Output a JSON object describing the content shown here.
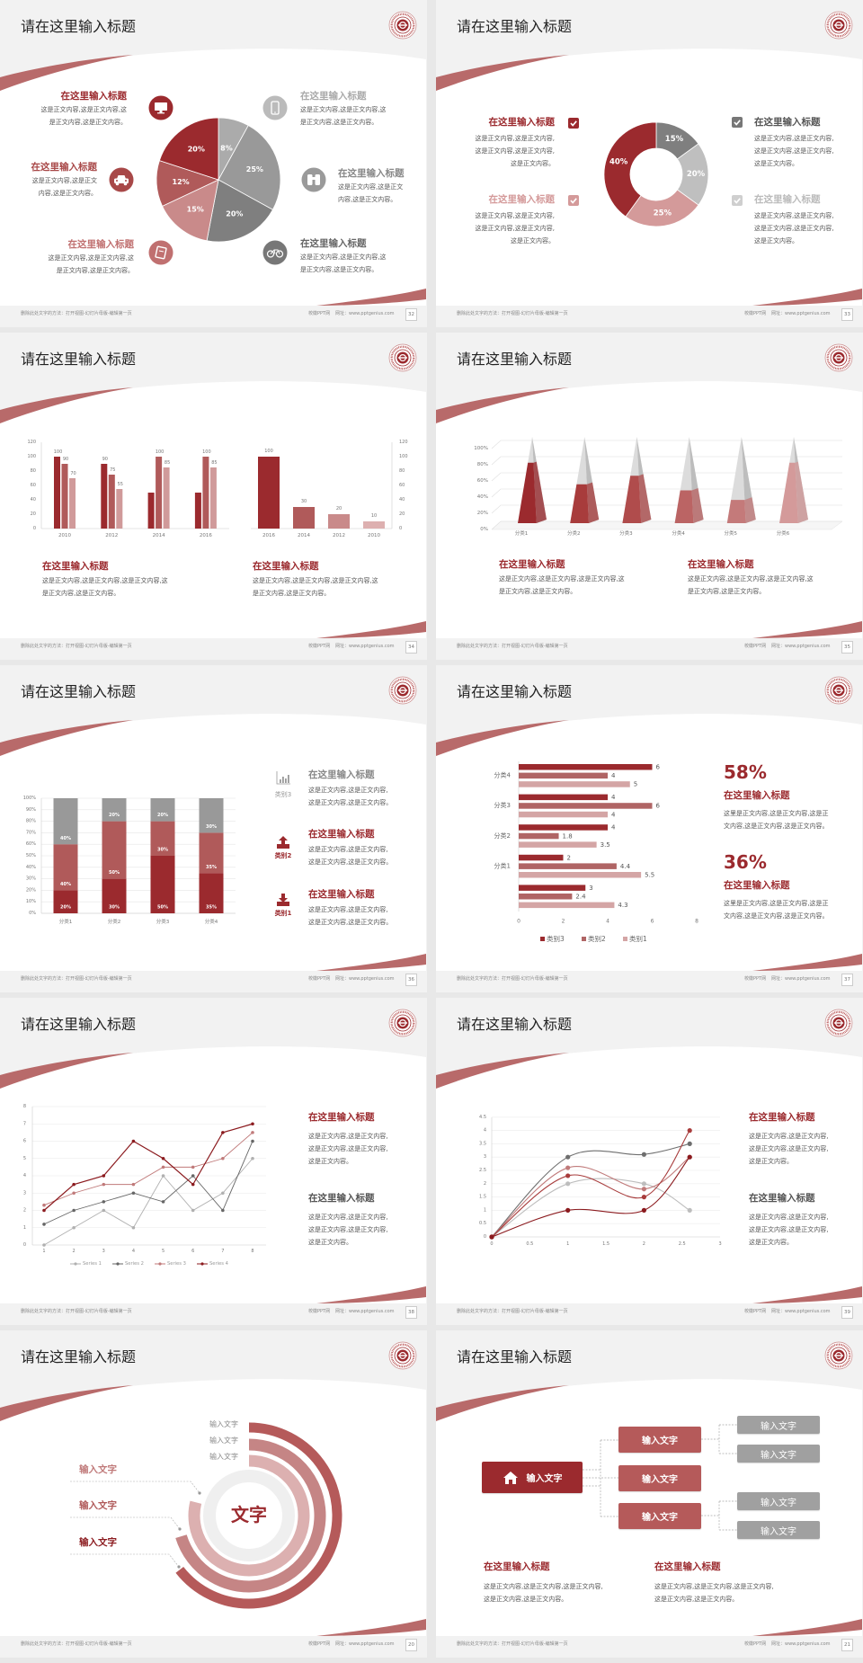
{
  "common": {
    "slide_title": "请在这里输入标题",
    "footer_note": "删除此处文字的方法：打开视图-幻灯片母版-编辑第一页",
    "footer_site": "校徽PPT网",
    "footer_url": "网址：www.pptgenius.com"
  },
  "colors": {
    "accent": "#9b2a2e",
    "accent_mid": "#b05a5a",
    "accent_light": "#d49a9a",
    "gray": "#999999",
    "background": "#f2f2f2"
  },
  "slides": [
    {
      "page": "32",
      "left": [
        {
          "title": "在这里输入标题",
          "lines": [
            "这是正文内容,这是正文内容,这",
            "是正文内容,这是正文内容。"
          ],
          "icon": "monitor-icon"
        },
        {
          "title": "在这里输入标题",
          "lines": [
            "这是正文内容,这是正文",
            "内容,这是正文内容。"
          ],
          "icon": "car-icon"
        },
        {
          "title": "在这里输入标题",
          "lines": [
            "这是正文内容,这是正文内容,这",
            "是正文内容,这是正文内容。"
          ],
          "icon": "book-icon"
        }
      ],
      "right": [
        {
          "title": "在这里输入标题",
          "lines": [
            "这是正文内容,这是正文内容,这",
            "是正文内容,这是正文内容。"
          ],
          "icon": "phone-icon"
        },
        {
          "title": "在这里输入标题",
          "lines": [
            "这是正文内容,这是正文",
            "内容,这是正文内容。"
          ],
          "icon": "binoculars-icon"
        },
        {
          "title": "在这里输入标题",
          "lines": [
            "这是正文内容,这是正文内容,这",
            "是正文内容,这是正文内容。"
          ],
          "icon": "bicycle-icon"
        }
      ]
    },
    {
      "page": "33",
      "left": [
        {
          "title": "在这里输入标题",
          "lines": [
            "这是正文内容,这是正文内容,",
            "这是正文内容,这是正文内容,",
            "这是正文内容。"
          ]
        },
        {
          "title": "在这里输入标题",
          "lines": [
            "这是正文内容,这是正文内容,",
            "这是正文内容,这是正文内容,",
            "这是正文内容。"
          ]
        }
      ],
      "right": [
        {
          "title": "在这里输入标题",
          "lines": [
            "这是正文内容,这是正文内容,",
            "这是正文内容,这是正文内容,",
            "这是正文内容。"
          ]
        },
        {
          "title": "在这里输入标题",
          "lines": [
            "这是正文内容,这是正文内容,",
            "这是正文内容,这是正文内容,",
            "这是正文内容。"
          ]
        }
      ]
    },
    {
      "page": "34",
      "blocks": [
        {
          "title": "在这里输入标题",
          "lines": [
            "这是正文内容,这是正文内容,这是正文内容,这",
            "是正文内容,这是正文内容。"
          ]
        },
        {
          "title": "在这里输入标题",
          "lines": [
            "这是正文内容,这是正文内容,这是正文内容,这",
            "是正文内容,这是正文内容。"
          ]
        }
      ]
    },
    {
      "page": "35",
      "blocks": [
        {
          "title": "在这里输入标题",
          "lines": [
            "这是正文内容,这是正文内容,这是正文内容,这",
            "是正文内容,这是正文内容。"
          ]
        },
        {
          "title": "在这里输入标题",
          "lines": [
            "这是正文内容,这是正文内容,这是正文内容,这",
            "是正文内容,这是正文内容。"
          ]
        }
      ]
    },
    {
      "page": "36",
      "items": [
        {
          "label": "类别3",
          "icon": "bar-chart-icon",
          "title": "在这里输入标题",
          "lines": [
            "这是正文内容,这是正文内容,",
            "这是正文内容,这是正文内容。"
          ]
        },
        {
          "label": "类别2",
          "icon": "upload-icon",
          "title": "在这里输入标题",
          "lines": [
            "这是正文内容,这是正文内容,",
            "这是正文内容,这是正文内容。"
          ]
        },
        {
          "label": "类别1",
          "icon": "download-icon",
          "title": "在这里输入标题",
          "lines": [
            "这是正文内容,这是正文内容,",
            "这是正文内容,这是正文内容。"
          ]
        }
      ]
    },
    {
      "page": "37",
      "stats": [
        {
          "value": "58%",
          "title": "在这里输入标题",
          "lines": [
            "这里是正文内容,这是正文内容,这是正",
            "文内容,这是正文内容,这是正文内容。"
          ]
        },
        {
          "value": "36%",
          "title": "在这里输入标题",
          "lines": [
            "这里是正文内容,这是正文内容,这是正",
            "文内容,这是正文内容,这是正文内容。"
          ]
        }
      ]
    },
    {
      "page": "38",
      "blocks": [
        {
          "title": "在这里输入标题",
          "lines": [
            "这是正文内容,这是正文内容,",
            "这是正文内容,这是正文内容,",
            "这是正文内容。"
          ]
        },
        {
          "title": "在这里输入标题",
          "lines": [
            "这是正文内容,这是正文内容,",
            "这是正文内容,这是正文内容,",
            "这是正文内容。"
          ]
        }
      ]
    },
    {
      "page": "39",
      "blocks": [
        {
          "title": "在这里输入标题",
          "lines": [
            "这是正文内容,这是正文内容,",
            "这是正文内容,这是正文内容,",
            "这是正文内容。"
          ]
        },
        {
          "title": "在这里输入标题",
          "lines": [
            "这是正文内容,这是正文内容,",
            "这是正文内容,这是正文内容,",
            "这是正文内容。"
          ]
        }
      ]
    },
    {
      "page": "20",
      "center": "文字",
      "ring_labels": [
        "输入文字",
        "输入文字",
        "输入文字"
      ],
      "side_labels": [
        "输入文字",
        "输入文字",
        "输入文字"
      ]
    },
    {
      "page": "21",
      "root": "输入文字",
      "root_icon": "home-icon",
      "branches": [
        "输入文字",
        "输入文字",
        "输入文字"
      ],
      "leaves": [
        "输入文字",
        "输入文字",
        "输入文字",
        "输入文字"
      ],
      "blocks": [
        {
          "title": "在这里输入标题",
          "lines": [
            "这是正文内容,这是正文内容,这是正文内容,",
            "这是正文内容,这是正文内容。"
          ]
        },
        {
          "title": "在这里输入标题",
          "lines": [
            "这是正文内容,这是正文内容,这是正文内容,",
            "这是正文内容,这是正文内容。"
          ]
        }
      ]
    }
  ],
  "chart_data": [
    {
      "type": "pie",
      "values": [
        8,
        25,
        20,
        15,
        12,
        20
      ],
      "labels": [
        "8%",
        "25%",
        "20%",
        "15%",
        "12%",
        "20%"
      ],
      "colors": [
        "#ababab",
        "#999999",
        "#7f7f7f",
        "#c98a8a",
        "#b05a5a",
        "#9b2a2e"
      ]
    },
    {
      "type": "pie",
      "donut": true,
      "values": [
        15,
        20,
        25,
        40
      ],
      "labels": [
        "15%",
        "20%",
        "25%",
        "40%"
      ],
      "colors": [
        "#7f7f7f",
        "#bfbfbf",
        "#d49a9a",
        "#9b2a2e"
      ]
    },
    {
      "type": "bar",
      "categories": [
        "2010",
        "2012",
        "2014",
        "2016"
      ],
      "series": [
        {
          "values": [
            100,
            90,
            50,
            50
          ],
          "labels": [
            "100",
            "90",
            null,
            null
          ]
        },
        {
          "values": [
            90,
            75,
            100,
            100
          ],
          "labels": [
            "90",
            "75",
            "100",
            "100"
          ]
        },
        {
          "values": [
            70,
            55,
            85,
            85
          ],
          "labels": [
            "70",
            "55",
            "85",
            "85"
          ]
        }
      ],
      "colors": [
        "#9b2a2e",
        "#b05a5a",
        "#d09a9a"
      ],
      "ylim": [
        0,
        120
      ],
      "yticks": [
        "0",
        "20",
        "40",
        "60",
        "80",
        "100",
        "120"
      ]
    },
    {
      "type": "bar",
      "categories": [
        "2016",
        "2014",
        "2012",
        "2010"
      ],
      "values": [
        100,
        30,
        20,
        10
      ],
      "labels": [
        "100",
        "30",
        "20",
        "10"
      ],
      "colors": [
        "#9b2a2e",
        "#b05a5a",
        "#c98a8a",
        "#ddb0b0"
      ],
      "ylim": [
        0,
        120
      ],
      "yaxis": "right",
      "yticks": [
        "0",
        "20",
        "40",
        "60",
        "80",
        "100",
        "120"
      ]
    },
    {
      "type": "bar",
      "style": "3d-pyramid",
      "categories": [
        "分类1",
        "分类2",
        "分类3",
        "分类4",
        "分类5",
        "分类6"
      ],
      "values": [
        70,
        45,
        55,
        38,
        27,
        70
      ],
      "colors": [
        "#9b2a2e",
        "#a83c3c",
        "#b04c4c",
        "#bb6464",
        "#c47a7a",
        "#d49a9a"
      ],
      "ylim": [
        0,
        100
      ],
      "yticks": [
        "0%",
        "20%",
        "40%",
        "60%",
        "80%",
        "100%"
      ]
    },
    {
      "type": "bar",
      "stacked": "percent",
      "categories": [
        "分类1",
        "分类2",
        "分类3",
        "分类4"
      ],
      "series": [
        {
          "values": [
            20,
            30,
            50,
            35
          ],
          "labels": [
            "20%",
            "30%",
            "50%",
            "35%"
          ]
        },
        {
          "values": [
            40,
            50,
            30,
            35
          ],
          "labels": [
            "40%",
            "50%",
            "30%",
            "35%"
          ]
        },
        {
          "values": [
            40,
            20,
            20,
            30
          ],
          "labels": [
            "40%",
            "20%",
            "20%",
            "30%"
          ]
        }
      ],
      "colors": [
        "#9b2a2e",
        "#b05a5a",
        "#999999"
      ],
      "ylim": [
        0,
        100
      ],
      "yticks": [
        "0%",
        "10%",
        "20%",
        "30%",
        "40%",
        "50%",
        "60%",
        "70%",
        "80%",
        "90%",
        "100%"
      ]
    },
    {
      "type": "bar",
      "orientation": "horizontal",
      "categories": [
        "分类4",
        "分类3",
        "分类2",
        "分类1",
        ""
      ],
      "series": [
        {
          "name": "类别3",
          "values": [
            6,
            4,
            4,
            2,
            3
          ]
        },
        {
          "name": "类别2",
          "values": [
            4,
            6,
            1.8,
            4.4,
            2.4
          ]
        },
        {
          "name": "类别1",
          "values": [
            5,
            4,
            3.5,
            5.5,
            4.3
          ]
        }
      ],
      "colors": [
        "#9b2a2e",
        "#b06565",
        "#d4a5a5"
      ],
      "xlim": [
        0,
        8
      ],
      "xticks": [
        "0",
        "2",
        "4",
        "6",
        "8"
      ],
      "legend": "bottom"
    },
    {
      "type": "line",
      "x": [
        "1",
        "2",
        "3",
        "4",
        "5",
        "6",
        "7",
        "8"
      ],
      "series": [
        {
          "name": "Series 1",
          "values": [
            0,
            1,
            2,
            1,
            4,
            2,
            3,
            5
          ]
        },
        {
          "name": "Series 2",
          "values": [
            1.2,
            2,
            2.5,
            3,
            2.5,
            4,
            2,
            6
          ]
        },
        {
          "name": "Series 3",
          "values": [
            2.3,
            3,
            3.5,
            3.5,
            4.5,
            4.5,
            5,
            6.5
          ]
        },
        {
          "name": "Series 4",
          "values": [
            2,
            3.5,
            4,
            6,
            5,
            3.5,
            6.5,
            7
          ]
        }
      ],
      "colors": [
        "#b0b0b0",
        "#666666",
        "#c07a7a",
        "#8b1a1e"
      ],
      "ylim": [
        0,
        8
      ],
      "yticks": [
        "0",
        "1",
        "2",
        "3",
        "4",
        "5",
        "6",
        "7",
        "8"
      ],
      "legend": "bottom",
      "grid": true
    },
    {
      "type": "line",
      "smooth": true,
      "x": [
        0,
        1,
        2,
        2.6
      ],
      "series": [
        {
          "values": [
            0,
            2,
            2,
            1
          ]
        },
        {
          "values": [
            0,
            3,
            3.1,
            3.5
          ]
        },
        {
          "values": [
            0,
            2.6,
            1.8,
            3
          ]
        },
        {
          "values": [
            0,
            2.3,
            1.5,
            4
          ]
        },
        {
          "values": [
            0,
            1,
            1,
            3
          ]
        }
      ],
      "colors": [
        "#bdbdbd",
        "#6e6e6e",
        "#c07a7a",
        "#a83c3c",
        "#8b1a1e"
      ],
      "xlim": [
        0,
        3
      ],
      "ylim": [
        0,
        4.5
      ],
      "xticks": [
        "0",
        "0.5",
        "1",
        "1.5",
        "2",
        "2.5",
        "3"
      ],
      "yticks": [
        "0",
        "0.5",
        "1",
        "1.5",
        "2",
        "2.5",
        "3",
        "3.5",
        "4",
        "4.5"
      ],
      "grid": true
    }
  ]
}
